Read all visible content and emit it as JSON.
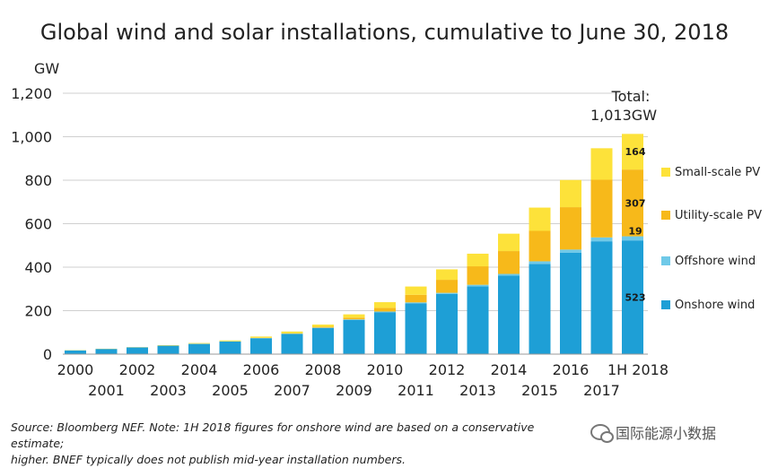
{
  "chart_data": {
    "type": "bar",
    "stacked": true,
    "title": "Global wind and solar installations, cumulative to June 30, 2018",
    "ylabel": "GW",
    "ylim": [
      0,
      1200
    ],
    "yticks": [
      "0",
      "200",
      "400",
      "600",
      "800",
      "1,000",
      "1,200"
    ],
    "ytick_values": [
      0,
      200,
      400,
      600,
      800,
      1000,
      1200
    ],
    "grid": true,
    "categories": [
      "2000",
      "2001",
      "2002",
      "2003",
      "2004",
      "2005",
      "2006",
      "2007",
      "2008",
      "2009",
      "2010",
      "2011",
      "2012",
      "2013",
      "2014",
      "2015",
      "2016",
      "2017",
      "1H 2018"
    ],
    "series": [
      {
        "name": "Onshore wind",
        "color": "#1e9fd6",
        "values": [
          17,
          24,
          31,
          39,
          47,
          58,
          73,
          93,
          120,
          158,
          193,
          234,
          277,
          312,
          361,
          415,
          467,
          519,
          523
        ]
      },
      {
        "name": "Offshore wind",
        "color": "#6fc9e8",
        "values": [
          0,
          0,
          0,
          0,
          1,
          1,
          1,
          1,
          2,
          2,
          3,
          4,
          5,
          7,
          8,
          12,
          14,
          18,
          19
        ]
      },
      {
        "name": "Utility-scale PV",
        "color": "#f7b91a",
        "values": [
          0,
          0,
          0,
          0,
          0,
          0,
          1,
          2,
          4,
          8,
          17,
          35,
          60,
          85,
          105,
          140,
          195,
          265,
          307
        ]
      },
      {
        "name": "Small-scale PV",
        "color": "#fde23a",
        "values": [
          1,
          1,
          1,
          2,
          3,
          4,
          6,
          8,
          10,
          15,
          26,
          38,
          48,
          58,
          80,
          107,
          125,
          145,
          164
        ]
      }
    ],
    "data_labels": {
      "category": "1H 2018",
      "values": [
        "164",
        "307",
        "19",
        "523"
      ]
    },
    "legend": {
      "placement": "right",
      "order": [
        "Small-scale PV",
        "Utility-scale PV",
        "Offshore wind",
        "Onshore wind"
      ]
    },
    "annotation": {
      "line1": "Total:",
      "line2": "1,013GW"
    }
  },
  "source_note": {
    "line1": "Source: Bloomberg NEF. Note: 1H 2018 figures for onshore wind are based on a conservative estimate;",
    "line2": "higher. BNEF typically does not publish mid-year installation numbers."
  },
  "watermark": {
    "text": "国际能源小数据",
    "icon": "wechat-icon"
  }
}
